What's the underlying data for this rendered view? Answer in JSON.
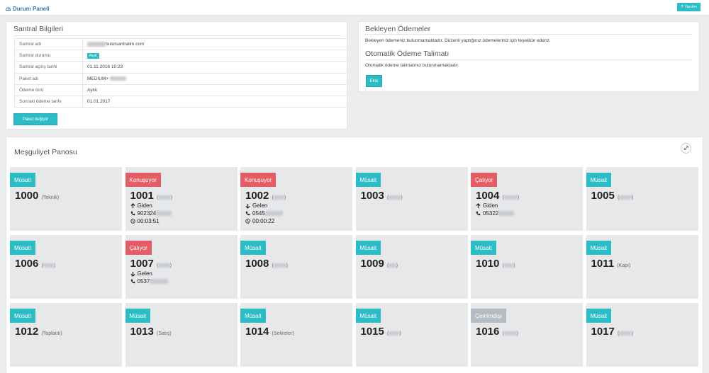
{
  "header": {
    "title": "Durum Paneli",
    "help_label": "Yardım"
  },
  "santral": {
    "title": "Santral Bilgileri",
    "rows": [
      {
        "label": "Santral adı",
        "value_hidden": "xxxxxxxx",
        "value": "bulutsantralim.com"
      },
      {
        "label": "Santral durumu",
        "badge": "Açık"
      },
      {
        "label": "Santral açılış tarihi",
        "value": "01.11.2016 10:23"
      },
      {
        "label": "Paket adı",
        "value": "MEDIUM+",
        "value_hidden": "xxxxxxx"
      },
      {
        "label": "Ödeme türü",
        "value": "Aylık"
      },
      {
        "label": "Sonraki ödeme tarihi",
        "value": "01.01.2017"
      }
    ],
    "button": "Paket değiştir"
  },
  "odemeler": {
    "title": "Bekleyen Ödemeler",
    "text": "Bekleyen ödemeniz bulunmamaktadır. Düzenli yaptığınız ödemeleriniz için teşekkür ederiz.",
    "talimat_title": "Otomatik Ödeme Talimatı",
    "talimat_text": "Otomatik ödeme talimatınız bulunmamaktadır.",
    "button": "Ekle"
  },
  "pano": {
    "title": "Meşguliyet Panosu",
    "cards": [
      {
        "status": "Müsait",
        "kind": "musait",
        "ext": "1000",
        "name": "(Teknik)"
      },
      {
        "status": "Konuşuyor",
        "kind": "konusuyor",
        "ext": "1001",
        "name_hidden": "Hasan",
        "direction": "Giden",
        "dir_icon": "arrow-up",
        "phone": "902324",
        "phone_hidden": "860838",
        "duration": "00:03:51"
      },
      {
        "status": "Konuşuyor",
        "kind": "konusuyor",
        "ext": "1002",
        "name_hidden": "Selim",
        "direction": "Gelen",
        "dir_icon": "arrow-down",
        "phone": "0545",
        "phone_hidden": "6578611",
        "duration": "00:00:22"
      },
      {
        "status": "Müsait",
        "kind": "musait",
        "ext": "1003",
        "name_hidden": "Kemal"
      },
      {
        "status": "Çalıyor",
        "kind": "caliyor",
        "ext": "1004",
        "name_hidden": "Serkan",
        "direction": "Giden",
        "dir_icon": "arrow-up",
        "phone": "05322",
        "phone_hidden": "185650"
      },
      {
        "status": "Müsait",
        "kind": "musait",
        "ext": "1005",
        "name_hidden": "Emrah"
      },
      {
        "status": "Müsait",
        "kind": "musait",
        "ext": "1006",
        "name_hidden": "Ömer"
      },
      {
        "status": "Çalıyor",
        "kind": "caliyor",
        "ext": "1007",
        "name_hidden": "Ceren",
        "direction": "Gelen",
        "dir_icon": "arrow-down",
        "phone": "0537",
        "phone_hidden": "6450760"
      },
      {
        "status": "Müsait",
        "kind": "musait",
        "ext": "1008",
        "name_hidden": "Doğan"
      },
      {
        "status": "Müsait",
        "kind": "musait",
        "ext": "1009",
        "name_hidden": "Ece"
      },
      {
        "status": "Müsait",
        "kind": "musait",
        "ext": "1010",
        "name_hidden": "Fatih"
      },
      {
        "status": "Müsait",
        "kind": "musait",
        "ext": "1011",
        "name": "(Kapı)"
      },
      {
        "status": "Müsait",
        "kind": "musait",
        "ext": "1012",
        "name": "(Toplantı)"
      },
      {
        "status": "Müsait",
        "kind": "musait",
        "ext": "1013",
        "name": "(Satış)"
      },
      {
        "status": "Müsait",
        "kind": "musait",
        "ext": "1014",
        "name": "(Sekreter)"
      },
      {
        "status": "Müsait",
        "kind": "musait",
        "ext": "1015",
        "name_hidden": "Selim"
      },
      {
        "status": "Çevrimdışı",
        "kind": "cevrimdisi",
        "ext": "1016",
        "name_hidden": "Doğan"
      },
      {
        "status": "Müsait",
        "kind": "musait",
        "ext": "1017",
        "name_hidden": "Hasan"
      }
    ]
  }
}
